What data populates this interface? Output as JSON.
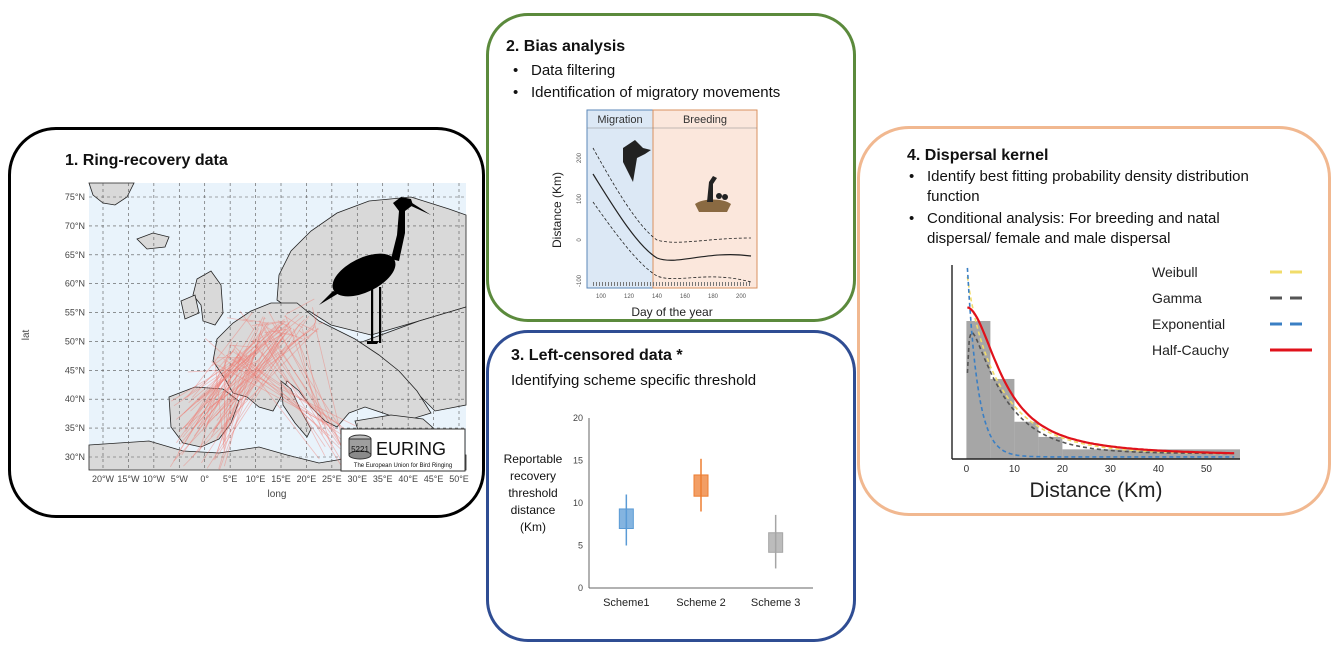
{
  "panel1": {
    "title": "1. Ring-recovery data",
    "map": {
      "y_axis_label": "lat",
      "x_axis_label": "long",
      "lat_ticks": [
        "75°N",
        "70°N",
        "65°N",
        "60°N",
        "55°N",
        "50°N",
        "45°N",
        "40°N",
        "35°N",
        "30°N"
      ],
      "long_ticks": [
        "20°W",
        "15°W",
        "10°W",
        "5°W",
        "0°",
        "5°E",
        "10°E",
        "15°E",
        "20°E",
        "25°E",
        "30°E",
        "35°E",
        "40°E",
        "45°E",
        "50°E"
      ],
      "colors": {
        "sea": "#e9f3fb",
        "land": "#d9d9d9",
        "tracks": "#ef7c74",
        "stork": "#000000"
      }
    },
    "logo": {
      "ring_number": "5221",
      "name": "EURING",
      "tagline": "The European Union for Bird Ringing"
    }
  },
  "panel2": {
    "title": "2. Bias analysis",
    "bullets": [
      "Data filtering",
      "Identification of migratory movements"
    ],
    "chart": {
      "phase_left": "Migration",
      "phase_right": "Breeding",
      "ylabel": "Distance (Km)",
      "xlabel": "Day of the year",
      "x_ticks": [
        "100",
        "120",
        "140",
        "160",
        "180",
        "200"
      ],
      "y_ticks": [
        "200",
        "100",
        "0",
        "-100"
      ],
      "colors": {
        "migration": "#dce8f5",
        "breeding": "#fbe7dc",
        "migration_border": "#5b87b8",
        "breeding_border": "#d9905f"
      }
    }
  },
  "panel3": {
    "title": "3. Left-censored data *",
    "subtitle": "Identifying scheme specific threshold",
    "ylabel_lines": [
      "Reportable",
      "recovery",
      "threshold",
      "distance",
      "(Km)"
    ]
  },
  "panel4": {
    "title": "4. Dispersal kernel",
    "bullet1_lines": [
      "Identify best fitting probability density distribution",
      "function"
    ],
    "bullet2_lines": [
      "Conditional analysis: For breeding and natal",
      "dispersal/ female and male dispersal"
    ],
    "legend": [
      {
        "name": "Weibull",
        "color": "#f1dc6a",
        "dash": true
      },
      {
        "name": "Gamma",
        "color": "#555555",
        "dash": true
      },
      {
        "name": "Exponential",
        "color": "#3a7fc4",
        "dash": true
      },
      {
        "name": "Half-Cauchy",
        "color": "#e0121b",
        "dash": false
      }
    ]
  },
  "chart_data": [
    {
      "type": "box",
      "categories": [
        "Scheme1",
        "Scheme 2",
        "Scheme 3"
      ],
      "boxes": [
        {
          "name": "Scheme1",
          "whisker_low": 5,
          "q1": 7,
          "q3": 9.3,
          "whisker_high": 11,
          "color": "#5b9bd5"
        },
        {
          "name": "Scheme 2",
          "whisker_low": 9,
          "q1": 10.8,
          "q3": 13.3,
          "whisker_high": 15.2,
          "color": "#ed7d31"
        },
        {
          "name": "Scheme 3",
          "whisker_low": 2.3,
          "q1": 4.2,
          "q3": 6.5,
          "whisker_high": 8.6,
          "color": "#a5a5a5"
        }
      ],
      "ylim": [
        0,
        20
      ],
      "y_ticks": [
        0,
        5,
        10,
        15,
        20
      ]
    },
    {
      "type": "histogram",
      "xlabel": "Distance (Km)",
      "x_ticks": [
        0,
        10,
        20,
        30,
        40,
        50
      ],
      "xlim": [
        -3,
        57
      ],
      "bins": [
        {
          "x0": 0,
          "x1": 5,
          "density": 1.0
        },
        {
          "x0": 5,
          "x1": 10,
          "density": 0.58
        },
        {
          "x0": 10,
          "x1": 15,
          "density": 0.27
        },
        {
          "x0": 15,
          "x1": 20,
          "density": 0.16
        },
        {
          "x0": 20,
          "x1": 57,
          "density": 0.07
        }
      ],
      "series": [
        {
          "name": "Weibull",
          "kind": "weibull"
        },
        {
          "name": "Gamma",
          "kind": "gamma"
        },
        {
          "name": "Exponential",
          "kind": "exponential"
        },
        {
          "name": "Half-Cauchy",
          "kind": "halfcauchy"
        }
      ]
    }
  ]
}
